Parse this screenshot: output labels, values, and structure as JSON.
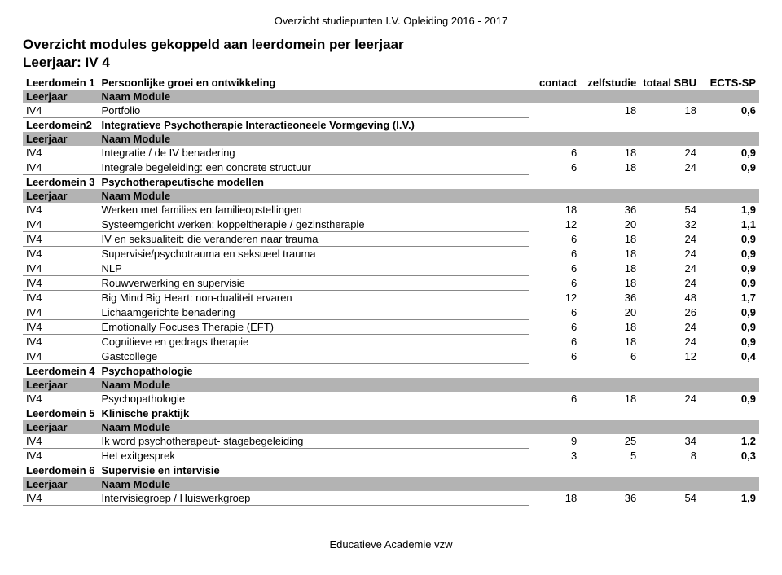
{
  "page_header": "Overzicht studiepunten I.V. Opleiding 2016 - 2017",
  "title": "Overzicht modules gekoppeld aan leerdomein per leerjaar",
  "year_line": "Leerjaar: IV 4",
  "col_headers": {
    "contact": "contact",
    "zelfstudie": "zelfstudie",
    "totaal": "totaal SBU",
    "ects": "ECTS-SP"
  },
  "subheader": {
    "leerjaar": "Leerjaar",
    "naam": "Naam Module"
  },
  "footer": "Educatieve Academie vzw",
  "domains": [
    {
      "label_left": "Leerdomein 1",
      "label_name": "Persoonlijke groei en ontwikkeling",
      "show_col_headers": true,
      "rows": [
        {
          "y": "IV4",
          "name": "Portfolio",
          "c": "",
          "z": "18",
          "t": "18",
          "e": "0,6"
        }
      ]
    },
    {
      "label_left": "Leerdomein2",
      "label_name": "Integratieve Psychotherapie Interactieoneele Vormgeving (I.V.)",
      "rows": [
        {
          "y": "IV4",
          "name": "Integratie / de IV benadering",
          "c": "6",
          "z": "18",
          "t": "24",
          "e": "0,9"
        },
        {
          "y": "IV4",
          "name": "Integrale begeleiding: een concrete structuur",
          "c": "6",
          "z": "18",
          "t": "24",
          "e": "0,9"
        }
      ]
    },
    {
      "label_left": "Leerdomein 3",
      "label_name": "Psychotherapeutische modellen",
      "rows": [
        {
          "y": "IV4",
          "name": "Werken met families en familieopstellingen",
          "c": "18",
          "z": "36",
          "t": "54",
          "e": "1,9"
        },
        {
          "y": "IV4",
          "name": "Systeemgericht werken: koppeltherapie / gezinstherapie",
          "c": "12",
          "z": "20",
          "t": "32",
          "e": "1,1"
        },
        {
          "y": "IV4",
          "name": "IV en seksualiteit: die veranderen naar trauma",
          "c": "6",
          "z": "18",
          "t": "24",
          "e": "0,9"
        },
        {
          "y": "IV4",
          "name": "Supervisie/psychotrauma en seksueel trauma",
          "c": "6",
          "z": "18",
          "t": "24",
          "e": "0,9"
        },
        {
          "y": "IV4",
          "name": "NLP",
          "c": "6",
          "z": "18",
          "t": "24",
          "e": "0,9"
        },
        {
          "y": "IV4",
          "name": "Rouwverwerking en supervisie",
          "c": "6",
          "z": "18",
          "t": "24",
          "e": "0,9"
        },
        {
          "y": "IV4",
          "name": "Big Mind Big Heart: non-dualiteit ervaren",
          "c": "12",
          "z": "36",
          "t": "48",
          "e": "1,7"
        },
        {
          "y": "IV4",
          "name": "Lichaamgerichte benadering",
          "c": "6",
          "z": "20",
          "t": "26",
          "e": "0,9"
        },
        {
          "y": "IV4",
          "name": "Emotionally Focuses Therapie (EFT)",
          "c": "6",
          "z": "18",
          "t": "24",
          "e": "0,9"
        },
        {
          "y": "IV4",
          "name": "Cognitieve en gedrags therapie",
          "c": "6",
          "z": "18",
          "t": "24",
          "e": "0,9"
        },
        {
          "y": "IV4",
          "name": "Gastcollege",
          "c": "6",
          "z": "6",
          "t": "12",
          "e": "0,4"
        }
      ]
    },
    {
      "label_left": "Leerdomein 4",
      "label_name": "Psychopathologie",
      "rows": [
        {
          "y": "IV4",
          "name": "Psychopathologie",
          "c": "6",
          "z": "18",
          "t": "24",
          "e": "0,9"
        }
      ]
    },
    {
      "label_left": "Leerdomein 5",
      "label_name": "Klinische praktijk",
      "rows": [
        {
          "y": "IV4",
          "name": "Ik word psychotherapeut- stagebegeleiding",
          "c": "9",
          "z": "25",
          "t": "34",
          "e": "1,2"
        },
        {
          "y": "IV4",
          "name": "Het exitgesprek",
          "c": "3",
          "z": "5",
          "t": "8",
          "e": "0,3"
        }
      ]
    },
    {
      "label_left": "Leerdomein 6",
      "label_name": "Supervisie en intervisie",
      "rows": [
        {
          "y": "IV4",
          "name": "Intervisiegroep / Huiswerkgroep",
          "c": "18",
          "z": "36",
          "t": "54",
          "e": "1,9"
        }
      ]
    }
  ]
}
